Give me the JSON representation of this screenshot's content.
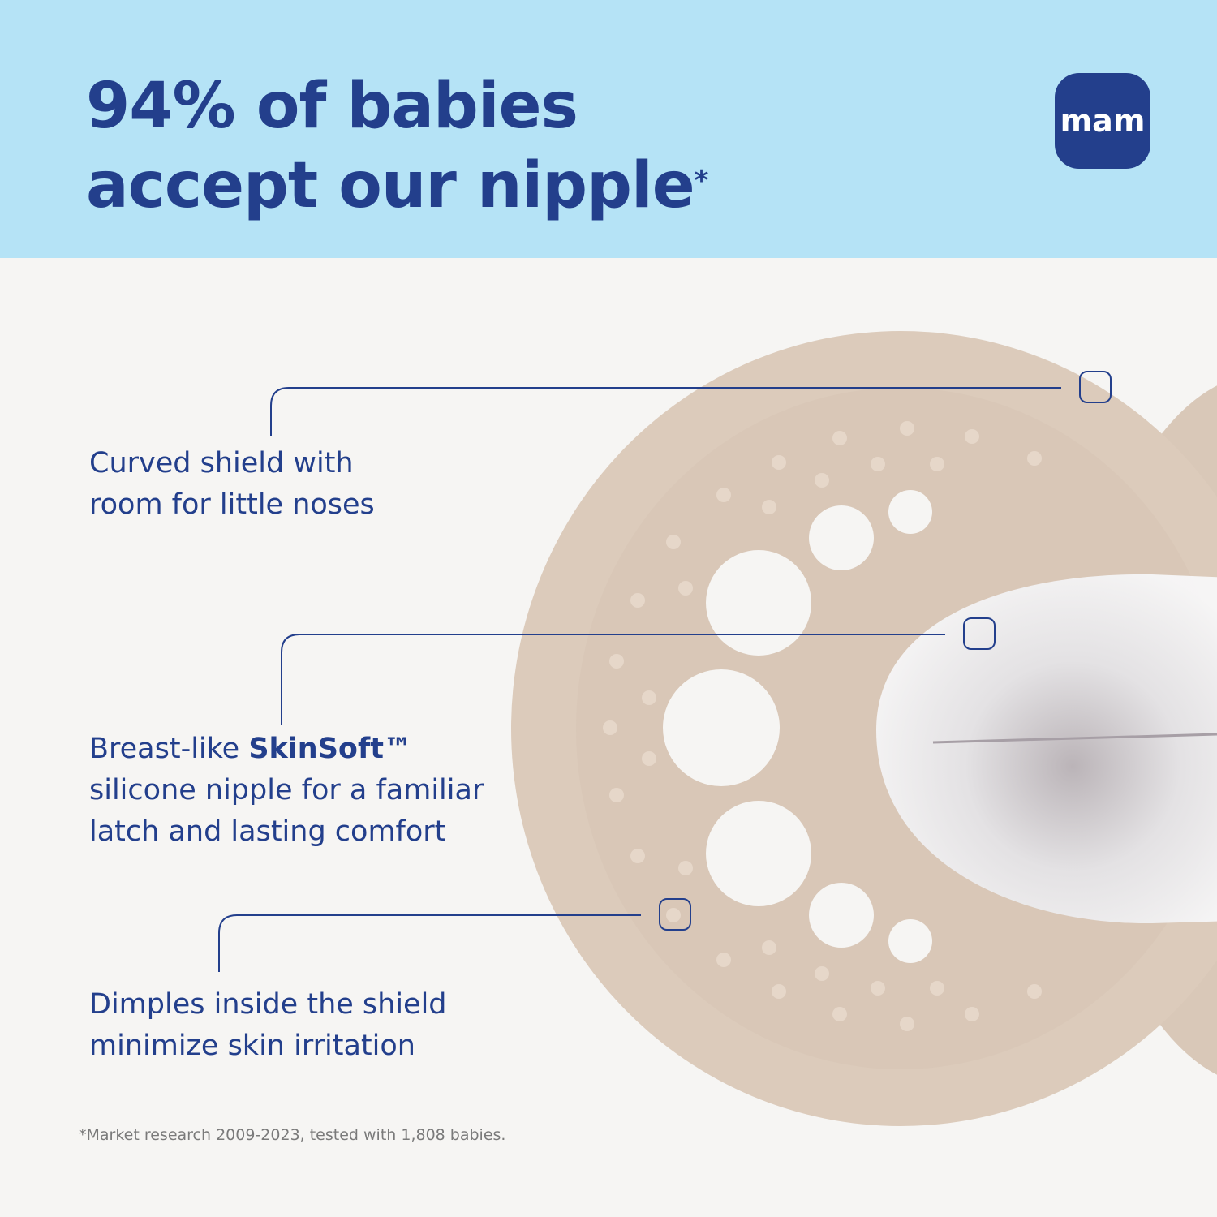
{
  "header": {
    "headline_line1": "94% of babies",
    "headline_line2": "accept our nipple",
    "headline_mark": "*",
    "logo_text": "mam",
    "background": "#b5e3f6",
    "text_color": "#233f8c"
  },
  "callouts": [
    {
      "line1": "Curved shield with",
      "line2": "room for little noses"
    },
    {
      "prefix": "Breast-like ",
      "bold": "SkinSoft™",
      "line2": "silicone nipple for a familiar",
      "line3": "latch and lasting comfort"
    },
    {
      "line1": "Dimples inside the shield",
      "line2": "minimize skin irritation"
    }
  ],
  "footnote": "*Market research 2009-2023, tested with 1,808 babies.",
  "product_color": "#dccbbb"
}
